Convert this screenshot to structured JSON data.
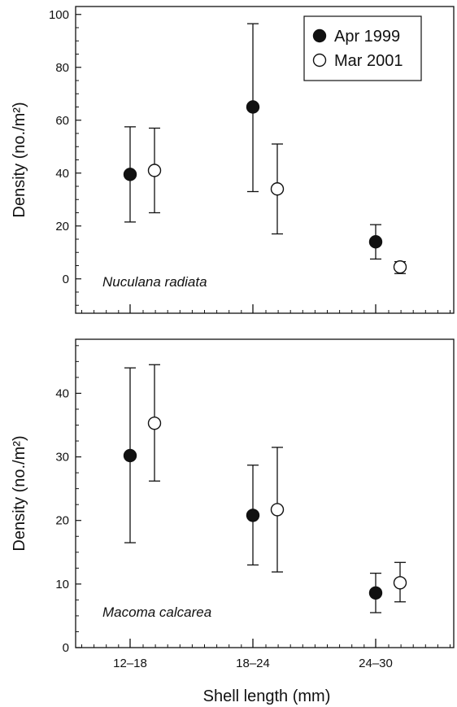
{
  "chart_data": [
    {
      "type": "scatter",
      "panel_label": "Nuculana radiata",
      "xlabel": "",
      "ylabel": "Density (no./m²)",
      "categories": [
        "12–18",
        "18–24",
        "24–30"
      ],
      "ylim": [
        -13,
        103
      ],
      "yticks": [
        0,
        20,
        40,
        60,
        80,
        100
      ],
      "grid": false,
      "legend_position": "top-right",
      "series": [
        {
          "name": "Apr 1999",
          "marker": "filled-circle",
          "values": [
            39.5,
            65,
            14
          ],
          "error_low": [
            21.5,
            33,
            7.5
          ],
          "error_high": [
            57.5,
            96.5,
            20.5
          ]
        },
        {
          "name": "Mar 2001",
          "marker": "open-circle",
          "values": [
            41,
            34,
            4.5
          ],
          "error_low": [
            25,
            17,
            2
          ],
          "error_high": [
            57,
            51,
            6.5
          ]
        }
      ]
    },
    {
      "type": "scatter",
      "panel_label": "Macoma calcarea",
      "xlabel": "Shell length (mm)",
      "ylabel": "Density (no./m²)",
      "categories": [
        "12–18",
        "18–24",
        "24–30"
      ],
      "ylim": [
        0,
        48.5
      ],
      "yticks": [
        0,
        10,
        20,
        30,
        40
      ],
      "grid": false,
      "series": [
        {
          "name": "Apr 1999",
          "marker": "filled-circle",
          "values": [
            30.2,
            20.8,
            8.6
          ],
          "error_low": [
            16.5,
            13,
            5.5
          ],
          "error_high": [
            44,
            28.7,
            11.7
          ]
        },
        {
          "name": "Mar 2001",
          "marker": "open-circle",
          "values": [
            35.3,
            21.7,
            10.2
          ],
          "error_low": [
            26.2,
            11.9,
            7.2
          ],
          "error_high": [
            44.5,
            31.5,
            13.4
          ]
        }
      ]
    }
  ],
  "colors": {
    "axis": "#111111",
    "filled_marker": "#111111",
    "open_marker_fill": "#ffffff"
  }
}
